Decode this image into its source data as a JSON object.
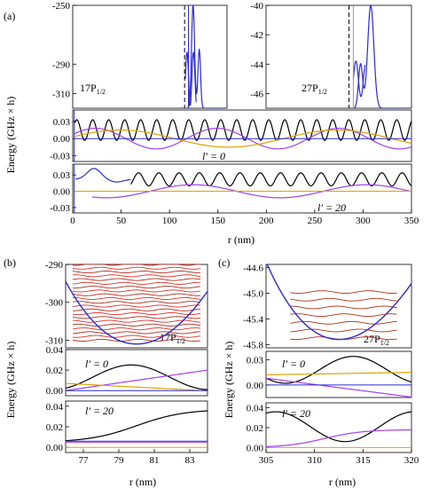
{
  "panel_labels": [
    "(a)",
    "(b)",
    "(c)"
  ],
  "labels": {
    "energy_axis": "Energy (GHz × h)",
    "r_axis": "r (nm)",
    "state_17": "17P",
    "state_27": "27P",
    "state_sub": "1/2",
    "l0": "l′ = 0",
    "l20": "l′ = 20"
  },
  "colors": {
    "potential": "#2b2bd0",
    "black": "#000000",
    "purple": "#a040f0",
    "orange": "#d9a400",
    "red": "#e03030",
    "dark_red": "#b03018",
    "dashed": "#000000"
  },
  "chart_data": [
    {
      "id": "a-top-left",
      "type": "line",
      "ylim": [
        -320,
        -250
      ],
      "yticks": [
        "-250",
        "-290",
        "-310"
      ],
      "ytick_values": [
        -250,
        -290,
        -310
      ],
      "xlim": [
        0,
        100
      ],
      "state_label": "17P_1/2"
    },
    {
      "id": "a-top-right",
      "type": "line",
      "ylim": [
        -47,
        -40
      ],
      "yticks": [
        "-40",
        "-42",
        "-44",
        "-46"
      ],
      "ytick_values": [
        -40,
        -42,
        -44,
        -46
      ],
      "xlim": [
        250,
        350
      ],
      "state_label": "27P_1/2"
    },
    {
      "id": "a-mid",
      "type": "line",
      "xlim": [
        0,
        350
      ],
      "ylim": [
        -0.04,
        0.05
      ],
      "yticks": [
        "0.03",
        "0.00",
        "-0.03"
      ],
      "ytick_values": [
        0.03,
        0.0,
        -0.03
      ],
      "annotation": "l′ = 0"
    },
    {
      "id": "a-bot",
      "type": "line",
      "xlim": [
        0,
        350
      ],
      "ylim": [
        -0.04,
        0.05
      ],
      "yticks": [
        "0.03",
        "0.00",
        "-0.03"
      ],
      "ytick_values": [
        0.03,
        0.0,
        -0.03
      ],
      "xticks": [
        "0",
        "50",
        "100",
        "150",
        "200",
        "250",
        "300",
        "350"
      ],
      "xtick_values": [
        0,
        50,
        100,
        150,
        200,
        250,
        300,
        350
      ],
      "xlabel": "r (nm)",
      "annotation": "l′ = 20"
    },
    {
      "id": "b-top",
      "type": "line",
      "xlim": [
        76,
        84
      ],
      "ylim": [
        -312,
        -290
      ],
      "yticks": [
        "-290",
        "-300",
        "-310"
      ],
      "ytick_values": [
        -290,
        -300,
        -310
      ],
      "state_label": "17P_1/2"
    },
    {
      "id": "b-mid",
      "type": "line",
      "xlim": [
        76,
        84
      ],
      "ylim": [
        -0.005,
        0.04
      ],
      "yticks": [
        "0.04",
        "0.02",
        "0.00"
      ],
      "ytick_values": [
        0.04,
        0.02,
        0.0
      ],
      "annotation": "l′ = 0"
    },
    {
      "id": "b-bot",
      "type": "line",
      "xlim": [
        76,
        84
      ],
      "ylim": [
        -0.005,
        0.045
      ],
      "yticks": [
        "0.04",
        "0.02",
        "0.00"
      ],
      "ytick_values": [
        0.04,
        0.02,
        0.0
      ],
      "xticks": [
        "77",
        "79",
        "81",
        "83"
      ],
      "xtick_values": [
        77,
        79,
        81,
        83
      ],
      "xlabel": "r (nm)",
      "annotation": "l′ = 20"
    },
    {
      "id": "c-top",
      "type": "line",
      "xlim": [
        305,
        320
      ],
      "ylim": [
        -45.85,
        -44.55
      ],
      "yticks": [
        "-44.6",
        "-45.0",
        "-45.4",
        "-45.8"
      ],
      "ytick_values": [
        -44.6,
        -45.0,
        -45.4,
        -45.8
      ],
      "state_label": "27P_1/2"
    },
    {
      "id": "c-mid",
      "type": "line",
      "xlim": [
        305,
        320
      ],
      "ylim": [
        -0.015,
        0.04
      ],
      "yticks": [
        "0.03",
        "0.00"
      ],
      "ytick_values": [
        0.03,
        0.0
      ],
      "annotation": "l′ = 0"
    },
    {
      "id": "c-bot",
      "type": "line",
      "xlim": [
        305,
        320
      ],
      "ylim": [
        -0.005,
        0.045
      ],
      "yticks": [
        "0.04",
        "0.02",
        "0.00"
      ],
      "ytick_values": [
        0.04,
        0.02,
        0.0
      ],
      "xticks": [
        "305",
        "310",
        "315",
        "320"
      ],
      "xtick_values": [
        305,
        310,
        315,
        320
      ],
      "xlabel": "r (nm)",
      "annotation": "l′ = 20"
    }
  ]
}
